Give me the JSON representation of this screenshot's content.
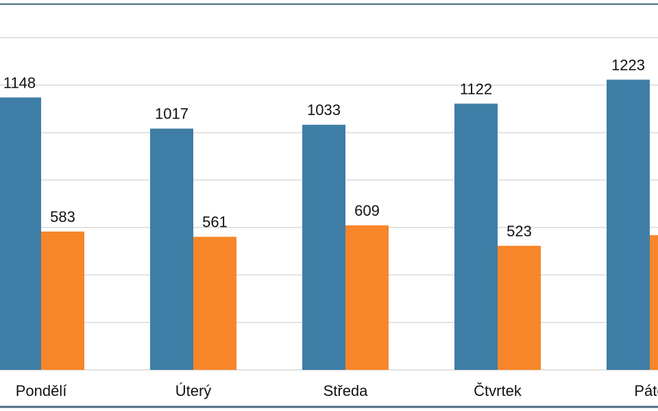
{
  "chart_data": {
    "type": "bar",
    "categories": [
      "Pondělí",
      "Úterý",
      "Středa",
      "Čtvrtek",
      "Páte"
    ],
    "series": [
      {
        "color": "#3f7ea6",
        "values": [
          1148,
          1017,
          1033,
          1122,
          1223
        ]
      },
      {
        "color": "#f7862a",
        "values": [
          583,
          561,
          609,
          523,
          568
        ]
      }
    ],
    "ylim": [
      0,
      1400
    ],
    "yticks": [
      0,
      200,
      400,
      600,
      800,
      1000,
      1200,
      1400
    ],
    "grid": true
  }
}
